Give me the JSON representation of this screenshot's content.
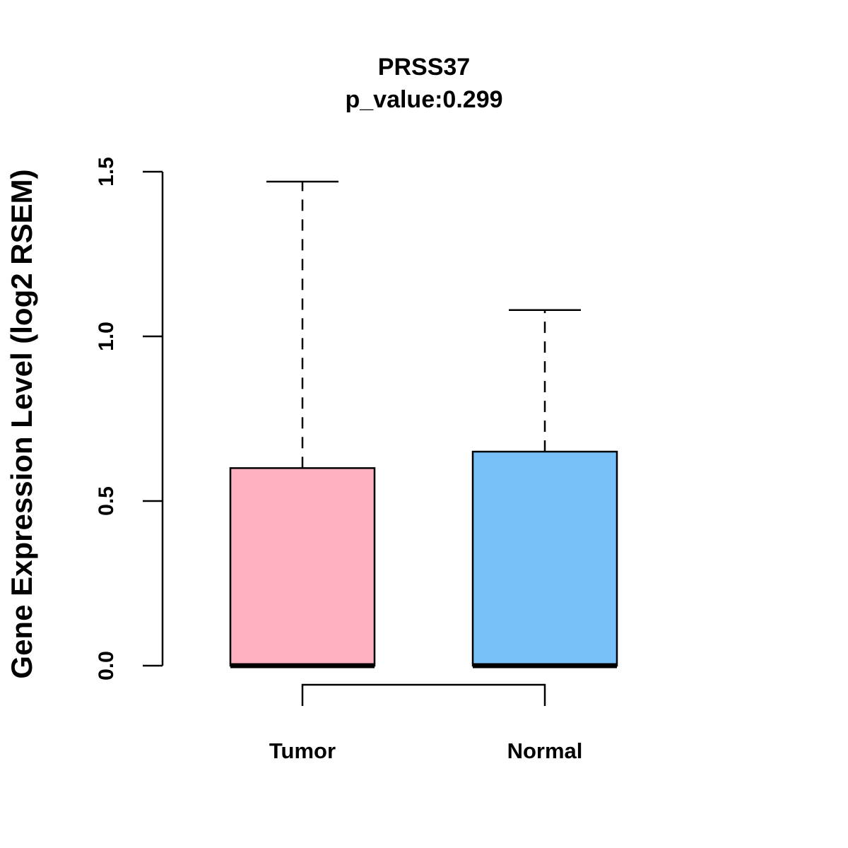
{
  "chart_data": {
    "type": "boxplot",
    "title": "PRSS37",
    "subtitle": "p_value:0.299",
    "xlabel": "",
    "ylabel": "Gene Expression Level (log2 RSEM)",
    "ylim": [
      0,
      1.5
    ],
    "yticks": [
      "0.0",
      "0.5",
      "1.0",
      "1.5"
    ],
    "grid": false,
    "categories": [
      "Tumor",
      "Normal"
    ],
    "boxes": [
      {
        "name": "Tumor",
        "min": 0.0,
        "q1": 0.0,
        "median": 0.0,
        "q3": 0.6,
        "max": 1.47,
        "color": "#FFB0C1"
      },
      {
        "name": "Normal",
        "min": 0.0,
        "q1": 0.0,
        "median": 0.0,
        "q3": 0.65,
        "max": 1.08,
        "color": "#77C1F8"
      }
    ],
    "comparison_bracket": [
      "Tumor",
      "Normal"
    ]
  }
}
